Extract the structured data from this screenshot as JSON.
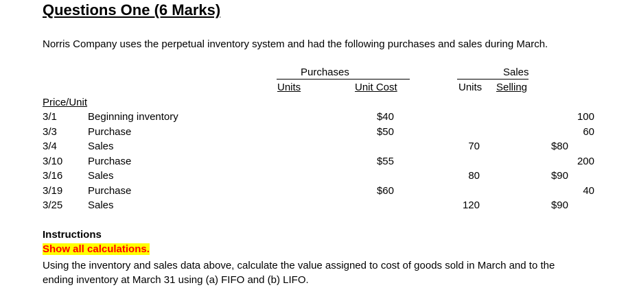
{
  "title": "Questions One (6 Marks)",
  "intro": "Norris Company uses the perpetual inventory system and had the following purchases and sales during March.",
  "headers": {
    "purchases": "Purchases",
    "units": "Units",
    "unit_cost": "Unit Cost",
    "sales": "Sales",
    "sales_units": "Units",
    "selling": "Selling",
    "price_unit": "Price/Unit"
  },
  "rows": [
    {
      "date": "3/1",
      "desc": "Beginning inventory",
      "units": "100",
      "unit_cost": "$40",
      "sales_units": "",
      "price": ""
    },
    {
      "date": "3/3",
      "desc": "Purchase",
      "units": "60",
      "unit_cost": "$50",
      "sales_units": "",
      "price": ""
    },
    {
      "date": "3/4",
      "desc": "Sales",
      "units": "",
      "unit_cost": "",
      "sales_units": "70",
      "price": "$80"
    },
    {
      "date": "3/10",
      "desc": "Purchase",
      "units": "200",
      "unit_cost": "$55",
      "sales_units": "",
      "price": ""
    },
    {
      "date": "3/16",
      "desc": "Sales",
      "units": "",
      "unit_cost": "",
      "sales_units": "80",
      "price": "$90"
    },
    {
      "date": "3/19",
      "desc": "Purchase",
      "units": "40",
      "unit_cost": "$60",
      "sales_units": "",
      "price": ""
    },
    {
      "date": "3/25",
      "desc": "Sales",
      "units": "",
      "unit_cost": "",
      "sales_units": "120",
      "price": "$90"
    }
  ],
  "instructions": {
    "heading": "Instructions",
    "highlight": "Show all calculations.",
    "text": "Using the inventory and sales data above, calculate the value assigned to cost of goods sold in March and to the ending inventory at March 31 using (a) FIFO and (b) LIFO."
  }
}
